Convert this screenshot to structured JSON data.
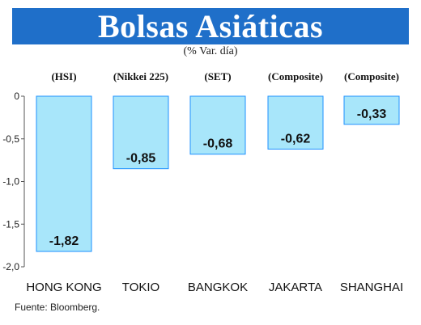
{
  "title": "Bolsas Asiáticas",
  "subtitle": "(% Var. día)",
  "source": "Fuente: Bloomberg.",
  "colors": {
    "header_bg": "#1f6fc9",
    "bar_fill": "#a8e6fa",
    "bar_stroke": "#1e90ff"
  },
  "chart_data": {
    "type": "bar",
    "categories": [
      "HONG KONG",
      "TOKIO",
      "BANGKOK",
      "JAKARTA",
      "SHANGHAI"
    ],
    "index_labels": [
      "(HSI)",
      "(Nikkei 225)",
      "(SET)",
      "(Composite)",
      "(Composite)"
    ],
    "values": [
      -1.82,
      -0.85,
      -0.68,
      -0.62,
      -0.33
    ],
    "value_labels": [
      "-1,82",
      "-0,85",
      "-0,68",
      "-0,62",
      "-0,33"
    ],
    "yticks": [
      "0",
      "-0,5",
      "-1,0",
      "-1,5",
      "-2,0"
    ],
    "ytick_values": [
      0,
      -0.5,
      -1.0,
      -1.5,
      -2.0
    ],
    "ylim": [
      -2.0,
      0
    ],
    "grid": false,
    "legend": "none"
  }
}
